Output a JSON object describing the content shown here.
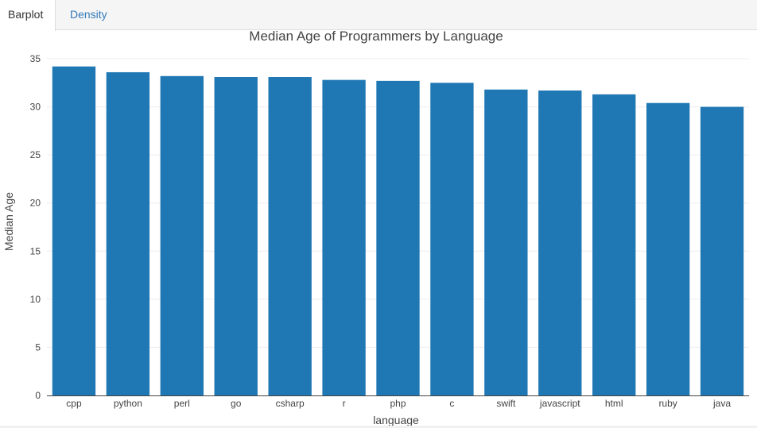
{
  "tabs": [
    {
      "label": "Barplot",
      "active": true
    },
    {
      "label": "Density",
      "active": false
    }
  ],
  "colors": {
    "bar": "#1f77b4",
    "tab_link": "#337ab7"
  },
  "chart_data": {
    "type": "bar",
    "title": "Median Age of Programmers by Language",
    "xlabel": "language",
    "ylabel": "Median Age",
    "categories": [
      "cpp",
      "python",
      "perl",
      "go",
      "csharp",
      "r",
      "php",
      "c",
      "swift",
      "javascript",
      "html",
      "ruby",
      "java"
    ],
    "values": [
      34.2,
      33.6,
      33.2,
      33.1,
      33.1,
      32.8,
      32.7,
      32.5,
      31.8,
      31.7,
      31.3,
      30.4,
      30.0
    ],
    "ylim": [
      0,
      35
    ],
    "yticks": [
      0,
      5,
      10,
      15,
      20,
      25,
      30,
      35
    ],
    "ytick_labels": [
      "0",
      "5",
      "10",
      "15",
      "20",
      "25",
      "30",
      "35"
    ],
    "grid": true
  }
}
